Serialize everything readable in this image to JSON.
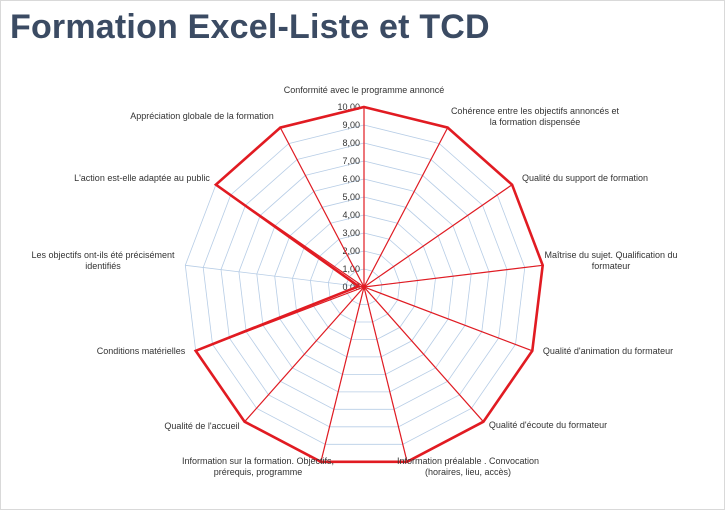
{
  "page": {
    "title": "Formation Excel-Liste et TCD"
  },
  "chart_data": {
    "type": "radar",
    "title": "",
    "categories": [
      "Conformité avec le programme annoncé",
      "Cohérence entre les objectifs annoncés et\nla formation dispensée",
      "Qualité du support de formation",
      "Maîtrise du sujet. Qualification du\nformateur",
      "Qualité d'animation du formateur",
      "Qualité d'écoute du formateur",
      "Information préalable . Convocation\n(horaires, lieu, accès)",
      "Information sur la formation. Objectifs,\nprérequis, programme",
      "Qualité de l'accueil",
      "Conditions matérielles",
      "Les objectifs ont-ils été précisément\nidentifiés",
      "L'action est-elle adaptée au public",
      "Appréciation globale de la formation"
    ],
    "series": [
      {
        "values": [
          10,
          10,
          10,
          10,
          10,
          10,
          10,
          10,
          10,
          10,
          0.3,
          10,
          10
        ],
        "color": "#e11b22"
      }
    ],
    "rlim": [
      0,
      10
    ],
    "ticks": [
      "0,00",
      "1,00",
      "2,00",
      "3,00",
      "4,00",
      "5,00",
      "6,00",
      "7,00",
      "8,00",
      "9,00",
      "10,00"
    ],
    "grid": true,
    "grid_color": "#b7cde6"
  }
}
